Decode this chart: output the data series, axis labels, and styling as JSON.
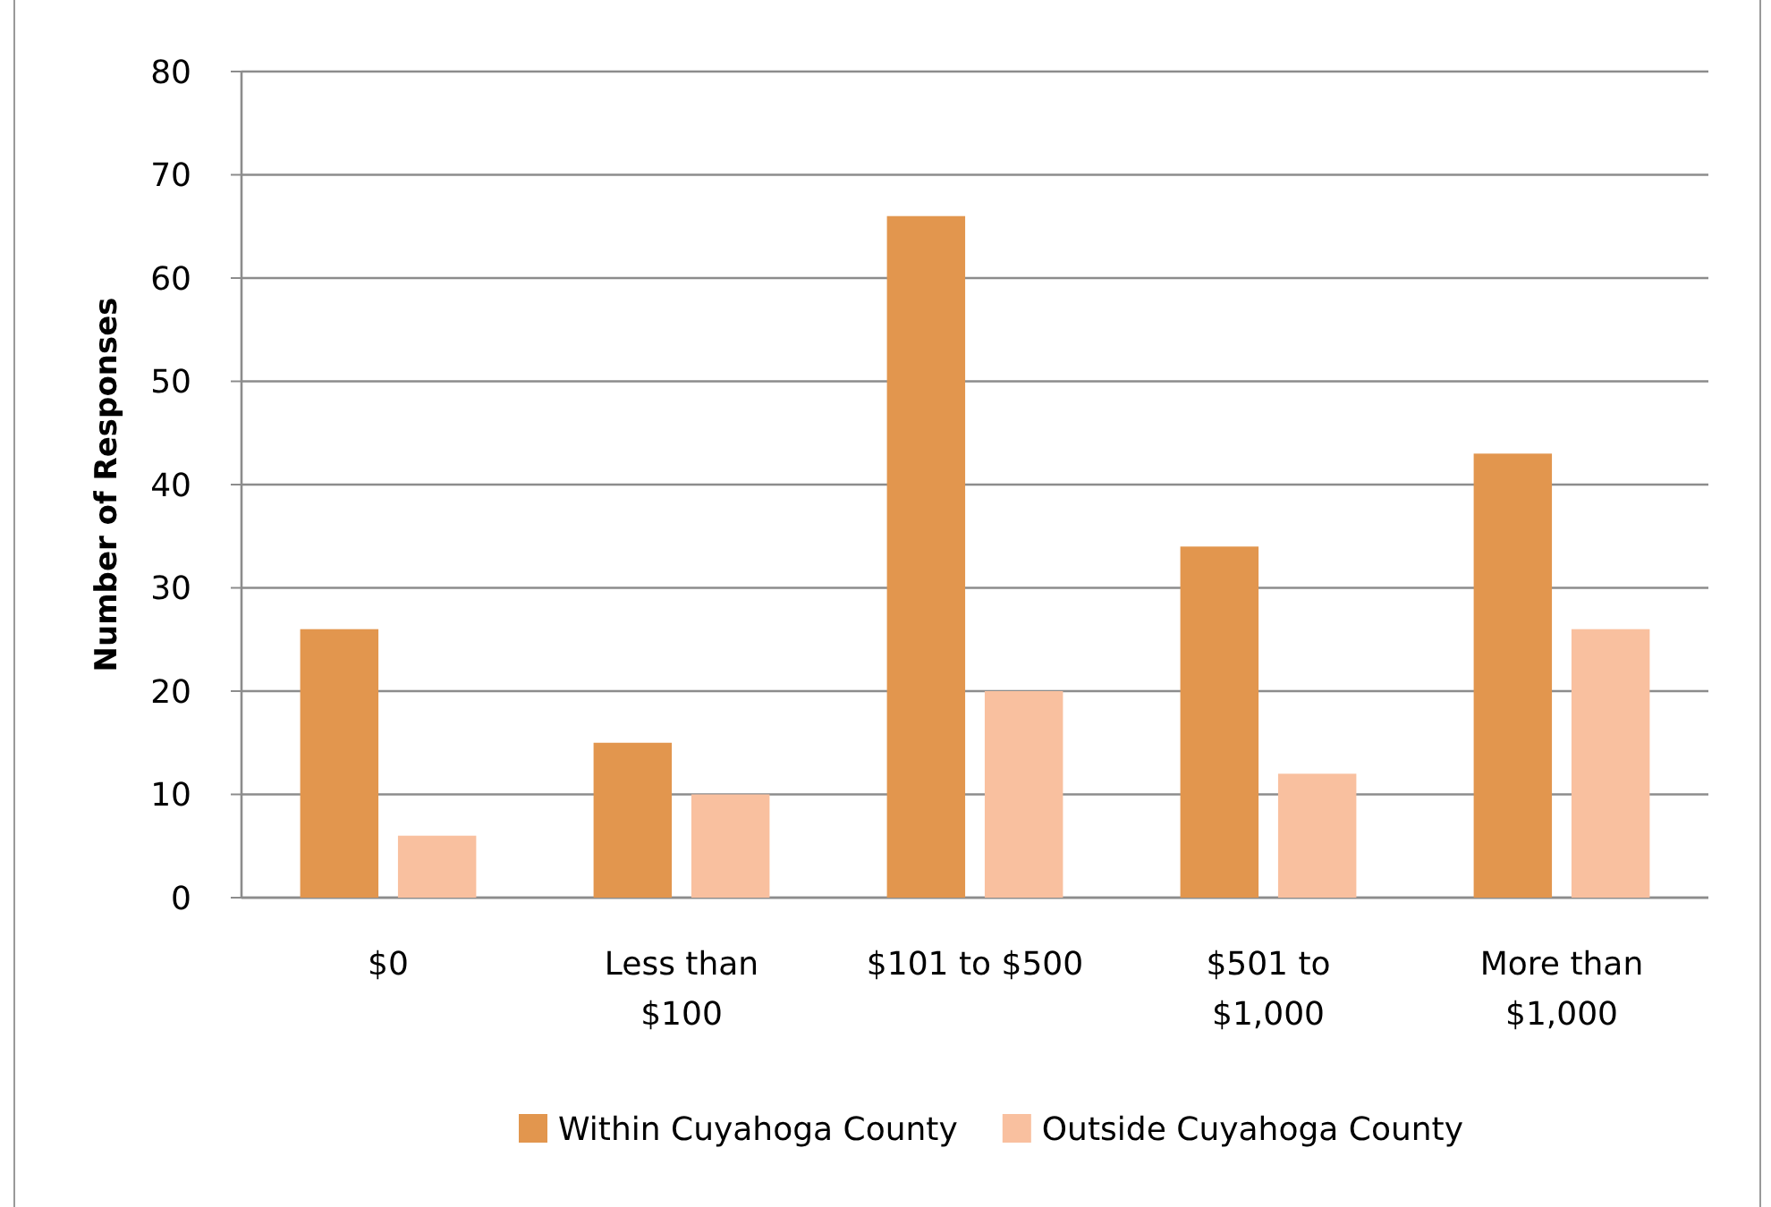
{
  "chart_data": {
    "type": "bar",
    "ylabel": "Number of Responses",
    "categories": [
      "$0",
      "Less than $100",
      "$101 to $500",
      "$501 to $1,000",
      "More than $1,000"
    ],
    "series": [
      {
        "name": "Within Cuyahoga County",
        "color": "#e2964e",
        "values": [
          26,
          15,
          66,
          34,
          43
        ]
      },
      {
        "name": "Outside Cuyahoga County",
        "color": "#f9c09f",
        "values": [
          6,
          10,
          20,
          12,
          26
        ]
      }
    ],
    "ylim": [
      0,
      80
    ],
    "yticks": [
      0,
      10,
      20,
      30,
      40,
      50,
      60,
      70,
      80
    ],
    "grid": "y",
    "legend": "bottom"
  }
}
